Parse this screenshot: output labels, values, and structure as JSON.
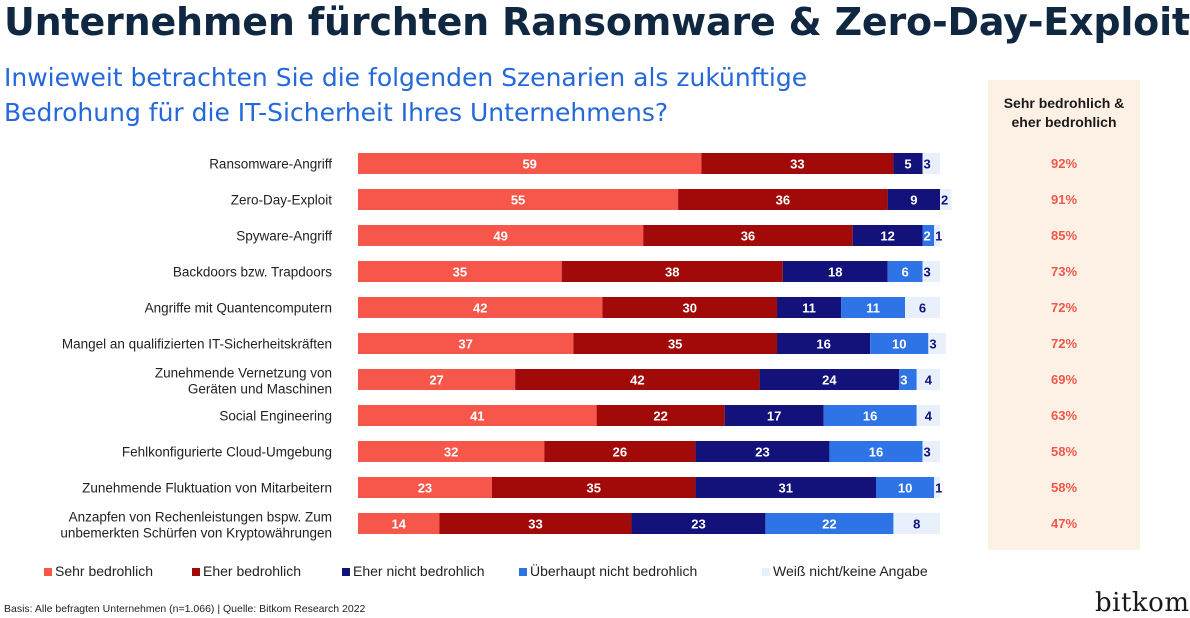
{
  "title": "Unternehmen fürchten Ransomware & Zero-Day-Exploits",
  "subtitle_line1": "Inwieweit betrachten Sie die folgenden Szenarien als zukünftige",
  "subtitle_line2": "Bedrohung für die IT-Sicherheit Ihres Unternehmens?",
  "side_header_line1": "Sehr bedrohlich &",
  "side_header_line2": "eher bedrohlich",
  "side_values": [
    "92%",
    "91%",
    "85%",
    "73%",
    "72%",
    "72%",
    "69%",
    "63%",
    "58%",
    "58%",
    "47%"
  ],
  "footer": "Basis: Alle befragten Unternehmen (n=1.066) | Quelle: Bitkom Research 2022",
  "logo": "bitkom",
  "colors": {
    "sehr": "#f7574a",
    "eher": "#a20a0a",
    "eher_nicht": "#12127a",
    "ueberhaupt_nicht": "#2f74e6",
    "weiss_nicht": "#e8f0fb"
  },
  "chart_data": {
    "type": "bar",
    "orientation": "horizontal",
    "stacked": true,
    "categories": [
      [
        "Ransomware-Angriff"
      ],
      [
        "Zero-Day-Exploit"
      ],
      [
        "Spyware-Angriff"
      ],
      [
        "Backdoors bzw. Trapdoors"
      ],
      [
        "Angriffe mit Quantencomputern"
      ],
      [
        "Mangel an qualifizierten IT-Sicherheitskräften"
      ],
      [
        "Zunehmende Vernetzung von",
        "Geräten und Maschinen"
      ],
      [
        "Social Engineering"
      ],
      [
        "Fehlkonfigurierte Cloud-Umgebung"
      ],
      [
        "Zunehmende Fluktuation von Mitarbeitern"
      ],
      [
        "Anzapfen von Rechenleistungen bspw. Zum",
        "unbemerkten Schürfen von Kryptowährungen"
      ]
    ],
    "series": [
      {
        "name": "Sehr bedrohlich",
        "values": [
          59,
          55,
          49,
          35,
          42,
          37,
          27,
          41,
          32,
          23,
          14
        ]
      },
      {
        "name": "Eher bedrohlich",
        "values": [
          33,
          36,
          36,
          38,
          30,
          35,
          42,
          22,
          26,
          35,
          33
        ]
      },
      {
        "name": "Eher nicht bedrohlich",
        "values": [
          5,
          9,
          12,
          18,
          11,
          16,
          24,
          17,
          23,
          31,
          23
        ]
      },
      {
        "name": "Überhaupt nicht bedrohlich",
        "values": [
          0,
          0,
          2,
          6,
          11,
          10,
          3,
          16,
          16,
          10,
          22
        ]
      },
      {
        "name": "Weiß nicht/keine Angabe",
        "values": [
          3,
          2,
          1,
          3,
          6,
          3,
          4,
          4,
          3,
          1,
          8
        ]
      }
    ],
    "xlim": [
      0,
      100
    ],
    "legend_position": "bottom"
  }
}
